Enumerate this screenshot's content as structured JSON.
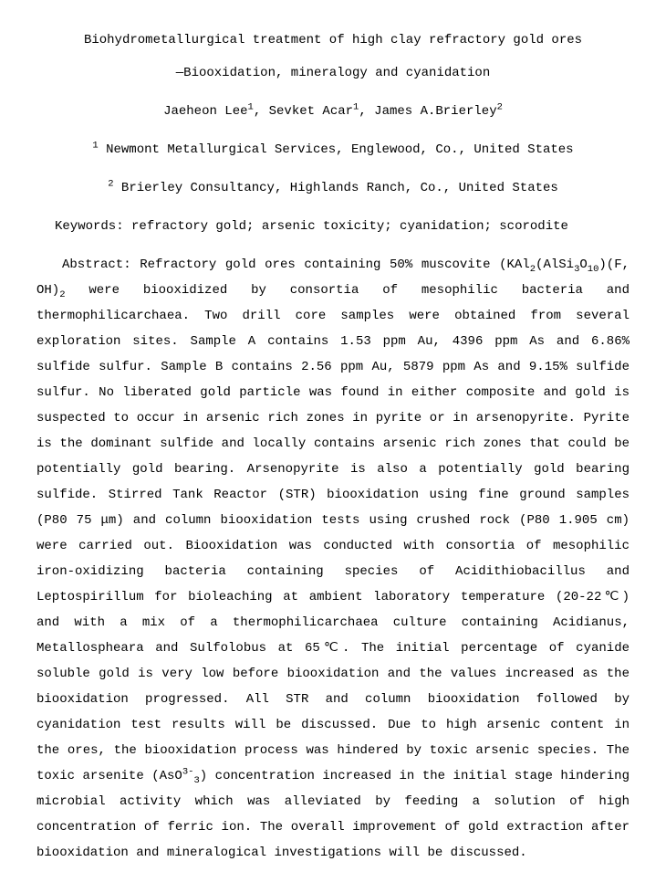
{
  "title_line1": "Biohydrometallurgical treatment of high clay refractory gold ores",
  "title_line2": "—Biooxidation, mineralogy and cyanidation",
  "authors": {
    "a1": "Jaeheon Lee",
    "a1_sup": "1",
    "a2": "Sevket Acar",
    "a2_sup": "1",
    "a3": "James A.Brierley",
    "a3_sup": "2"
  },
  "affiliations": {
    "aff1_sup": "1",
    "aff1": " Newmont Metallurgical Services, Englewood, Co., United States",
    "aff2_sup": "2",
    "aff2": " Brierley Consultancy, Highlands Ranch, Co., United States"
  },
  "keywords": "Keywords: refractory gold; arsenic toxicity; cyanidation; scorodite",
  "abstract": {
    "label": "Abstract: ",
    "p1a": "Refractory gold ores containing 50% muscovite (KAl",
    "p1b": "2",
    "p1c": "(AlSi",
    "p1d": "3",
    "p1e": "O",
    "p1f": "10",
    "p1g": ")(F, OH)",
    "p1h": "2",
    "p1i": " were biooxidized by consortia of mesophilic bacteria and thermophilicarchaea. Two drill core samples were obtained from several exploration sites. Sample A contains 1.53 ppm Au, 4396 ppm As and 6.86% sulfide sulfur. Sample B contains 2.56 ppm Au, 5879 ppm As and 9.15% sulfide sulfur. No liberated gold particle was found in either composite and gold is suspected to occur in arsenic rich zones in pyrite or in arsenopyrite. Pyrite is the dominant sulfide and locally contains arsenic rich zones that could be potentially gold bearing. Arsenopyrite is also a potentially gold bearing sulfide. Stirred Tank Reactor (STR) biooxidation using fine ground samples (P80 75 μm) and column biooxidation tests using crushed rock (P80 1.905 cm) were carried out. Biooxidation was conducted with consortia of mesophilic iron-oxidizing bacteria containing species of Acidithiobacillus and Leptospirillum for bioleaching at ambient laboratory temperature (20-22℃) and with a mix of a thermophilicarchaea culture containing Acidianus, Metallospheara and Sulfolobus at 65℃. The initial percentage of cyanide soluble gold is very low before biooxidation and the values increased as the biooxidation progressed. All STR and column biooxidation followed by cyanidation test results will be discussed. Due to high arsenic content in the ores, the biooxidation process was hindered by toxic arsenic species. The toxic arsenite (AsO",
    "p2a": "3-",
    "p2b": "3",
    "p2c": ") concentration increased in the initial stage hindering microbial activity which was alleviated by feeding a solution of high concentration of ferric ion. The overall improvement of gold extraction after biooxidation and mineralogical investigations will be discussed."
  }
}
